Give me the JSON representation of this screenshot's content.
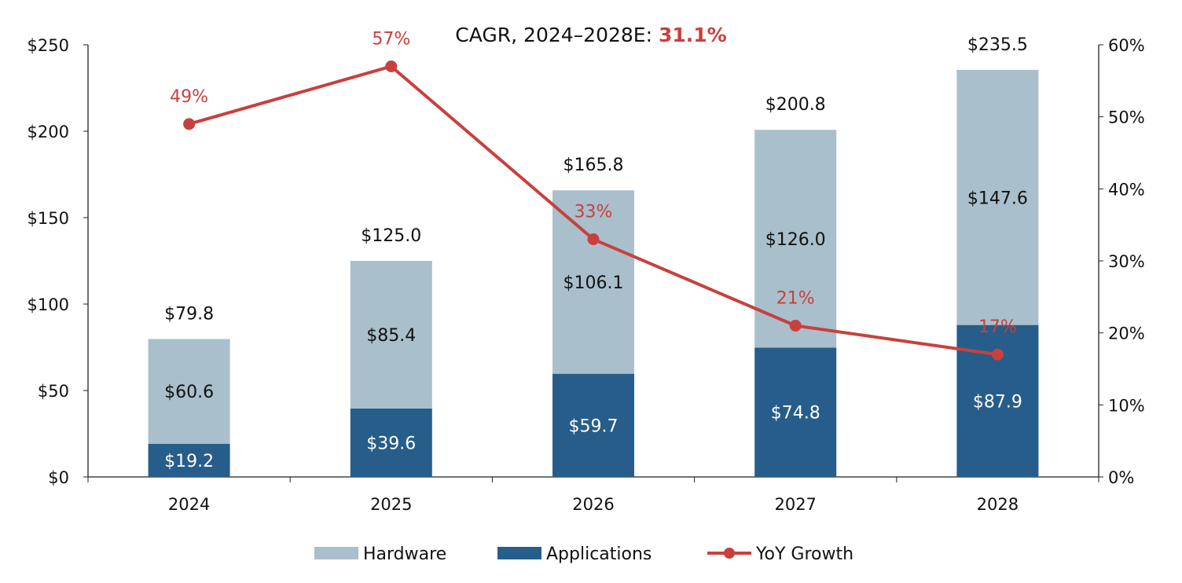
{
  "chart_data": {
    "type": "bar",
    "stacked": true,
    "title": "CAGR, 2024–2028E:",
    "title_value": "31.1%",
    "categories": [
      "2024",
      "2025",
      "2026",
      "2027",
      "2028"
    ],
    "series": [
      {
        "name": "Applications",
        "type": "bar",
        "color": "#275d8a",
        "values": [
          19.2,
          39.6,
          59.7,
          74.8,
          87.9
        ],
        "labels": [
          "$19.2",
          "$39.6",
          "$59.7",
          "$74.8",
          "$87.9"
        ]
      },
      {
        "name": "Hardware",
        "type": "bar",
        "color": "#a9bfcc",
        "values": [
          60.6,
          85.4,
          106.1,
          126.0,
          147.6
        ],
        "labels": [
          "$60.6",
          "$85.4",
          "$106.1",
          "$126.0",
          "$147.6"
        ]
      },
      {
        "name": "YoY Growth",
        "type": "line",
        "axis": "right",
        "color": "#c8403d",
        "values": [
          49,
          57,
          33,
          21,
          17
        ],
        "labels": [
          "49%",
          "57%",
          "33%",
          "21%",
          "17%"
        ]
      }
    ],
    "totals": [
      "$79.8",
      "$125.0",
      "$165.8",
      "$200.8",
      "$235.5"
    ],
    "y_left": {
      "range": [
        0,
        250
      ],
      "ticks": [
        "$0",
        "$50",
        "$100",
        "$150",
        "$200",
        "$250"
      ]
    },
    "y_right": {
      "range": [
        0,
        60
      ],
      "ticks": [
        "0%",
        "10%",
        "20%",
        "30%",
        "40%",
        "50%",
        "60%"
      ]
    },
    "grid": false,
    "legend": {
      "placement": "bottom",
      "entries": [
        "Hardware",
        "Applications",
        "YoY Growth"
      ]
    }
  }
}
